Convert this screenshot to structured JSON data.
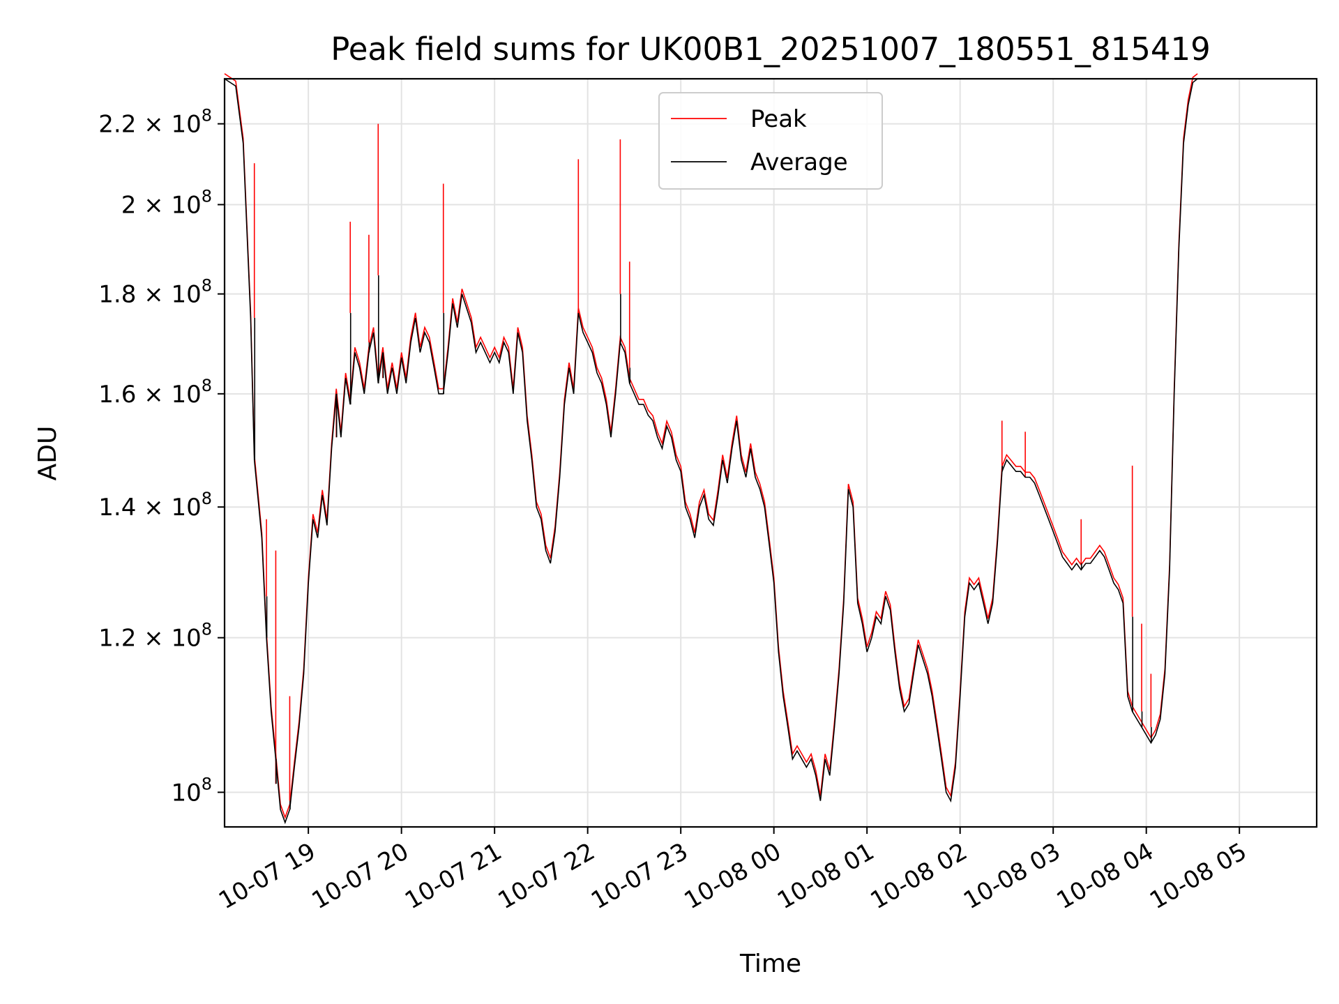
{
  "chart_data": {
    "type": "line",
    "title": "Peak field sums for UK00B1_20251007_180551_815419",
    "xlabel": "Time",
    "ylabel": "ADU",
    "yscale": "log",
    "ylim": [
      96000000,
      232000000
    ],
    "xlim_hours": [
      18.1,
      29.83
    ],
    "grid": true,
    "legend_position": "top-center",
    "x_ticks": [
      {
        "value": 19,
        "label": "10-07 19"
      },
      {
        "value": 20,
        "label": "10-07 20"
      },
      {
        "value": 21,
        "label": "10-07 21"
      },
      {
        "value": 22,
        "label": "10-07 22"
      },
      {
        "value": 23,
        "label": "10-07 23"
      },
      {
        "value": 24,
        "label": "10-08 00"
      },
      {
        "value": 25,
        "label": "10-08 01"
      },
      {
        "value": 26,
        "label": "10-08 02"
      },
      {
        "value": 27,
        "label": "10-08 03"
      },
      {
        "value": 28,
        "label": "10-08 04"
      },
      {
        "value": 29,
        "label": "10-08 05"
      }
    ],
    "y_ticks": [
      {
        "value": 100000000,
        "mant": "",
        "label": "10",
        "exp": "8"
      },
      {
        "value": 120000000,
        "mant": "1.2 × ",
        "label": "10",
        "exp": "8"
      },
      {
        "value": 140000000,
        "mant": "1.4 × ",
        "label": "10",
        "exp": "8"
      },
      {
        "value": 160000000,
        "mant": "1.6 × ",
        "label": "10",
        "exp": "8"
      },
      {
        "value": 180000000,
        "mant": "1.8 × ",
        "label": "10",
        "exp": "8"
      },
      {
        "value": 200000000,
        "mant": "2 × ",
        "label": "10",
        "exp": "8"
      },
      {
        "value": 220000000,
        "mant": "2.2 × ",
        "label": "10",
        "exp": "8"
      }
    ],
    "series": [
      {
        "name": "Peak",
        "color": "#ff0000"
      },
      {
        "name": "Average",
        "color": "#000000"
      }
    ],
    "average_points": [
      [
        18.1,
        232
      ],
      [
        18.22,
        230
      ],
      [
        18.3,
        215
      ],
      [
        18.38,
        175
      ],
      [
        18.42,
        148
      ],
      [
        18.5,
        135
      ],
      [
        18.55,
        120
      ],
      [
        18.6,
        110
      ],
      [
        18.65,
        104
      ],
      [
        18.7,
        98
      ],
      [
        18.75,
        96.5
      ],
      [
        18.8,
        98
      ],
      [
        18.85,
        103
      ],
      [
        18.9,
        108
      ],
      [
        18.95,
        115
      ],
      [
        19.0,
        128
      ],
      [
        19.05,
        138
      ],
      [
        19.1,
        135
      ],
      [
        19.15,
        142
      ],
      [
        19.2,
        137
      ],
      [
        19.25,
        150
      ],
      [
        19.3,
        160
      ],
      [
        19.35,
        152
      ],
      [
        19.4,
        163
      ],
      [
        19.45,
        158
      ],
      [
        19.5,
        168
      ],
      [
        19.55,
        165
      ],
      [
        19.6,
        160
      ],
      [
        19.65,
        168
      ],
      [
        19.7,
        172
      ],
      [
        19.75,
        162
      ],
      [
        19.8,
        168
      ],
      [
        19.85,
        160
      ],
      [
        19.9,
        165
      ],
      [
        19.95,
        160
      ],
      [
        20.0,
        167
      ],
      [
        20.05,
        162
      ],
      [
        20.1,
        170
      ],
      [
        20.15,
        175
      ],
      [
        20.2,
        168
      ],
      [
        20.25,
        172
      ],
      [
        20.3,
        170
      ],
      [
        20.35,
        165
      ],
      [
        20.4,
        160
      ],
      [
        20.45,
        160
      ],
      [
        20.5,
        168
      ],
      [
        20.55,
        178
      ],
      [
        20.6,
        173
      ],
      [
        20.65,
        180
      ],
      [
        20.7,
        177
      ],
      [
        20.75,
        174
      ],
      [
        20.8,
        168
      ],
      [
        20.85,
        170
      ],
      [
        20.9,
        168
      ],
      [
        20.95,
        166
      ],
      [
        21.0,
        168
      ],
      [
        21.05,
        166
      ],
      [
        21.1,
        170
      ],
      [
        21.15,
        168
      ],
      [
        21.2,
        160
      ],
      [
        21.25,
        172
      ],
      [
        21.3,
        168
      ],
      [
        21.35,
        155
      ],
      [
        21.4,
        148
      ],
      [
        21.45,
        140
      ],
      [
        21.5,
        138
      ],
      [
        21.55,
        133
      ],
      [
        21.6,
        131
      ],
      [
        21.65,
        136
      ],
      [
        21.7,
        145
      ],
      [
        21.75,
        158
      ],
      [
        21.8,
        165
      ],
      [
        21.85,
        160
      ],
      [
        21.9,
        176
      ],
      [
        21.95,
        172
      ],
      [
        22.0,
        170
      ],
      [
        22.05,
        168
      ],
      [
        22.1,
        164
      ],
      [
        22.15,
        162
      ],
      [
        22.2,
        158
      ],
      [
        22.25,
        152
      ],
      [
        22.3,
        160
      ],
      [
        22.35,
        170
      ],
      [
        22.4,
        168
      ],
      [
        22.45,
        162
      ],
      [
        22.5,
        160
      ],
      [
        22.55,
        158
      ],
      [
        22.6,
        158
      ],
      [
        22.65,
        156
      ],
      [
        22.7,
        155
      ],
      [
        22.75,
        152
      ],
      [
        22.8,
        150
      ],
      [
        22.85,
        154
      ],
      [
        22.9,
        152
      ],
      [
        22.95,
        148
      ],
      [
        23.0,
        146
      ],
      [
        23.05,
        140
      ],
      [
        23.1,
        138
      ],
      [
        23.15,
        135
      ],
      [
        23.2,
        140
      ],
      [
        23.25,
        142
      ],
      [
        23.3,
        138
      ],
      [
        23.35,
        137
      ],
      [
        23.4,
        142
      ],
      [
        23.45,
        148
      ],
      [
        23.5,
        144
      ],
      [
        23.55,
        150
      ],
      [
        23.6,
        155
      ],
      [
        23.65,
        148
      ],
      [
        23.7,
        145
      ],
      [
        23.75,
        150
      ],
      [
        23.8,
        145
      ],
      [
        23.85,
        143
      ],
      [
        23.9,
        140
      ],
      [
        23.95,
        134
      ],
      [
        24.0,
        128
      ],
      [
        24.05,
        118
      ],
      [
        24.1,
        112
      ],
      [
        24.15,
        108
      ],
      [
        24.2,
        104
      ],
      [
        24.25,
        105
      ],
      [
        24.3,
        104
      ],
      [
        24.35,
        103
      ],
      [
        24.4,
        104
      ],
      [
        24.45,
        102
      ],
      [
        24.5,
        99
      ],
      [
        24.55,
        104
      ],
      [
        24.6,
        102
      ],
      [
        24.65,
        108
      ],
      [
        24.7,
        115
      ],
      [
        24.75,
        125
      ],
      [
        24.8,
        143
      ],
      [
        24.85,
        140
      ],
      [
        24.9,
        125
      ],
      [
        24.95,
        122
      ],
      [
        25.0,
        118
      ],
      [
        25.05,
        120
      ],
      [
        25.1,
        123
      ],
      [
        25.15,
        122
      ],
      [
        25.2,
        126
      ],
      [
        25.25,
        124
      ],
      [
        25.3,
        118
      ],
      [
        25.35,
        113
      ],
      [
        25.4,
        110
      ],
      [
        25.45,
        111
      ],
      [
        25.5,
        115
      ],
      [
        25.55,
        119
      ],
      [
        25.6,
        117
      ],
      [
        25.65,
        115
      ],
      [
        25.7,
        112
      ],
      [
        25.75,
        108
      ],
      [
        25.8,
        104
      ],
      [
        25.85,
        100
      ],
      [
        25.9,
        99
      ],
      [
        25.95,
        103
      ],
      [
        26.0,
        112
      ],
      [
        26.05,
        123
      ],
      [
        26.1,
        128
      ],
      [
        26.15,
        127
      ],
      [
        26.2,
        128
      ],
      [
        26.25,
        125
      ],
      [
        26.3,
        122
      ],
      [
        26.35,
        125
      ],
      [
        26.4,
        134
      ],
      [
        26.45,
        146
      ],
      [
        26.5,
        148
      ],
      [
        26.55,
        147
      ],
      [
        26.6,
        146
      ],
      [
        26.65,
        146
      ],
      [
        26.7,
        145
      ],
      [
        26.75,
        145
      ],
      [
        26.8,
        144
      ],
      [
        26.85,
        142
      ],
      [
        26.9,
        140
      ],
      [
        26.95,
        138
      ],
      [
        27.0,
        136
      ],
      [
        27.05,
        134
      ],
      [
        27.1,
        132
      ],
      [
        27.15,
        131
      ],
      [
        27.2,
        130
      ],
      [
        27.25,
        131
      ],
      [
        27.3,
        130
      ],
      [
        27.35,
        131
      ],
      [
        27.4,
        131
      ],
      [
        27.45,
        132
      ],
      [
        27.5,
        133
      ],
      [
        27.55,
        132
      ],
      [
        27.6,
        130
      ],
      [
        27.65,
        128
      ],
      [
        27.7,
        127
      ],
      [
        27.75,
        125
      ],
      [
        27.8,
        112
      ],
      [
        27.85,
        110
      ],
      [
        27.9,
        109
      ],
      [
        27.95,
        108
      ],
      [
        28.0,
        107
      ],
      [
        28.05,
        106
      ],
      [
        28.1,
        107
      ],
      [
        28.15,
        109
      ],
      [
        28.2,
        115
      ],
      [
        28.25,
        130
      ],
      [
        28.3,
        160
      ],
      [
        28.35,
        190
      ],
      [
        28.4,
        215
      ],
      [
        28.45,
        225
      ],
      [
        28.5,
        231
      ],
      [
        28.55,
        232
      ]
    ],
    "spikes": [
      {
        "x": 18.42,
        "peak": 210,
        "avg": 175
      },
      {
        "x": 18.55,
        "peak": 138,
        "avg": 126
      },
      {
        "x": 18.65,
        "peak": 133,
        "avg": 101
      },
      {
        "x": 18.8,
        "peak": 112,
        "avg": 99
      },
      {
        "x": 19.3,
        "peak": 160,
        "avg": 152
      },
      {
        "x": 19.45,
        "peak": 196,
        "avg": 176
      },
      {
        "x": 19.65,
        "peak": 193,
        "avg": 170
      },
      {
        "x": 19.75,
        "peak": 220,
        "avg": 184
      },
      {
        "x": 19.8,
        "peak": 169,
        "avg": 163
      },
      {
        "x": 20.45,
        "peak": 205,
        "avg": 176
      },
      {
        "x": 21.9,
        "peak": 211,
        "avg": 176
      },
      {
        "x": 22.35,
        "peak": 216,
        "avg": 180
      },
      {
        "x": 22.45,
        "peak": 187,
        "avg": 165
      },
      {
        "x": 26.45,
        "peak": 155,
        "avg": 147
      },
      {
        "x": 26.7,
        "peak": 153,
        "avg": 145
      },
      {
        "x": 27.3,
        "peak": 138,
        "avg": 131
      },
      {
        "x": 27.85,
        "peak": 147,
        "avg": 123
      },
      {
        "x": 27.95,
        "peak": 122,
        "avg": 110
      },
      {
        "x": 28.05,
        "peak": 115,
        "avg": 108
      }
    ]
  }
}
